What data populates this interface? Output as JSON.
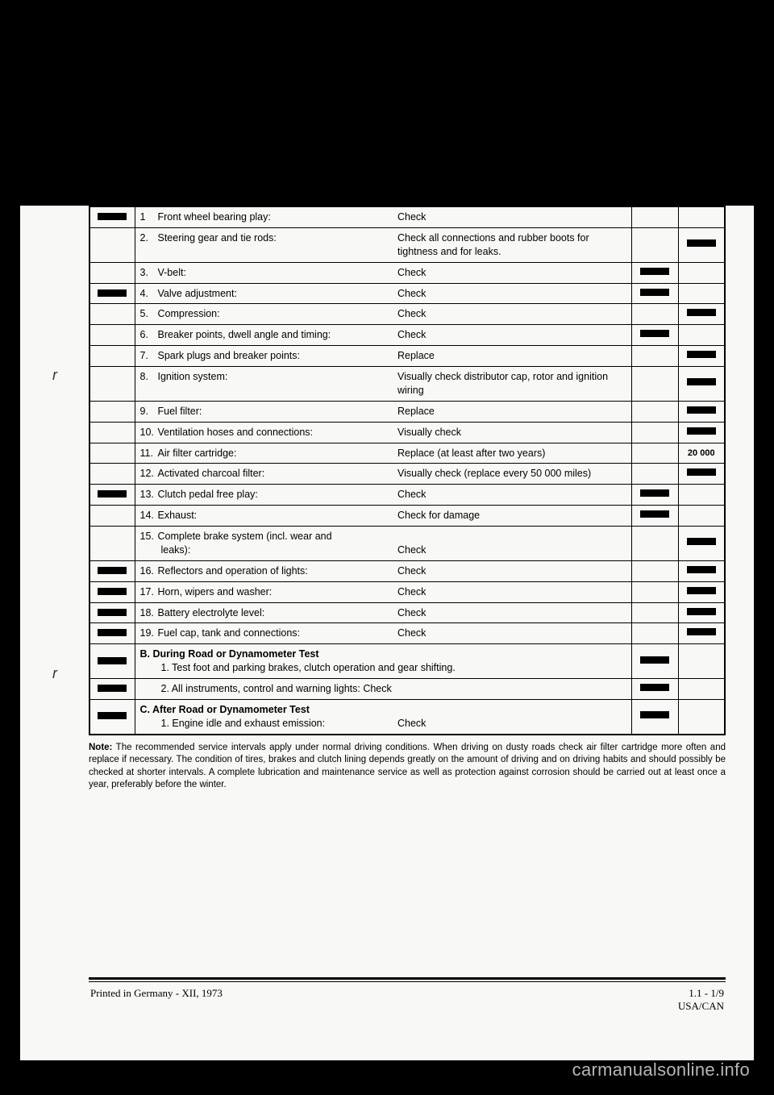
{
  "rows": [
    {
      "m1": "bar",
      "n": "1",
      "desc": "Front wheel bearing play:",
      "action": "Check",
      "i1": "",
      "i2": ""
    },
    {
      "m1": "",
      "n": "2.",
      "desc": "Steering gear and tie rods:",
      "action": "Check all connections and rubber boots for tightness and for leaks.",
      "i1": "",
      "i2": "bar"
    },
    {
      "m1": "",
      "n": "3.",
      "desc": "V-belt:",
      "action": "Check",
      "i1": "bar",
      "i2": ""
    },
    {
      "m1": "bar",
      "n": "4.",
      "desc": "Valve adjustment:",
      "action": "Check",
      "i1": "bar",
      "i2": ""
    },
    {
      "m1": "",
      "n": "5.",
      "desc": "Compression:",
      "action": "Check",
      "i1": "",
      "i2": "bar"
    },
    {
      "m1": "",
      "n": "6.",
      "desc": "Breaker points, dwell angle and timing:",
      "action": "Check",
      "i1": "bar",
      "i2": ""
    },
    {
      "m1": "",
      "n": "7.",
      "desc": "Spark plugs and breaker points:",
      "action": "Replace",
      "i1": "",
      "i2": "bar"
    },
    {
      "m1": "",
      "n": "8.",
      "desc": "Ignition system:",
      "action": "Visually check distributor cap, rotor and ignition wiring",
      "i1": "",
      "i2": "bar"
    },
    {
      "m1": "",
      "n": "9.",
      "desc": "Fuel filter:",
      "action": "Replace",
      "i1": "",
      "i2": "bar"
    },
    {
      "m1": "",
      "n": "10.",
      "desc": "Ventilation hoses and connections:",
      "action": "Visually check",
      "i1": "",
      "i2": "bar"
    },
    {
      "m1": "",
      "n": "11.",
      "desc": "Air filter cartridge:",
      "action": "Replace (at least after two years)",
      "i1": "",
      "i2": "20 000"
    },
    {
      "m1": "",
      "n": "12.",
      "desc": "Activated charcoal filter:",
      "action": "Visually check (replace every 50 000 miles)",
      "i1": "",
      "i2": "bar"
    },
    {
      "m1": "bar",
      "n": "13.",
      "desc": "Clutch pedal free play:",
      "action": "Check",
      "i1": "bar",
      "i2": ""
    },
    {
      "m1": "",
      "n": "14.",
      "desc": "Exhaust:",
      "action": "Check for damage",
      "i1": "bar",
      "i2": ""
    },
    {
      "m1": "",
      "n": "15.",
      "desc": "Complete brake system (incl. wear and leaks):",
      "action": "Check",
      "i1": "",
      "i2": "bar",
      "multiline": true
    },
    {
      "m1": "bar",
      "n": "16.",
      "desc": "Reflectors and operation of lights:",
      "action": "Check",
      "i1": "",
      "i2": "bar"
    },
    {
      "m1": "bar",
      "n": "17.",
      "desc": "Horn, wipers and washer:",
      "action": "Check",
      "i1": "",
      "i2": "bar"
    },
    {
      "m1": "bar",
      "n": "18.",
      "desc": "Battery electrolyte level:",
      "action": "Check",
      "i1": "",
      "i2": "bar"
    },
    {
      "m1": "bar",
      "n": "19.",
      "desc": "Fuel cap, tank and connections:",
      "action": "Check",
      "i1": "",
      "i2": "bar"
    }
  ],
  "sectionB": {
    "head": "B. During Road or Dynamometer Test",
    "rows": [
      {
        "m1": "bar",
        "text": "1. Test foot and parking brakes, clutch operation and gear shifting.",
        "i1": "bar",
        "i2": ""
      },
      {
        "m1": "bar",
        "text": "2. All instruments, control and warning lights:  Check",
        "i1": "bar",
        "i2": ""
      }
    ]
  },
  "sectionC": {
    "head": "C. After Road or Dynamometer Test",
    "rows": [
      {
        "m1": "bar",
        "text": "1. Engine idle and exhaust emission:",
        "action": "Check",
        "i1": "bar",
        "i2": ""
      }
    ]
  },
  "note_label": "Note:",
  "note": " The recommended service intervals apply under normal driving conditions. When driving on dusty roads check air filter cartridge more often and replace if necessary. The condition of tires, brakes and clutch lining depends greatly on the amount of driving and on driving habits and should possibly be checked at shorter intervals. A complete lubrication and maintenance service as well as protection against corrosion should be carried out at least once a year, preferably before the winter.",
  "footer_left": "Printed in Germany  -  XII, 1973",
  "footer_right_1": "1.1 - 1/9",
  "footer_right_2": "USA/CAN",
  "watermark": "carmanualsonline.info"
}
